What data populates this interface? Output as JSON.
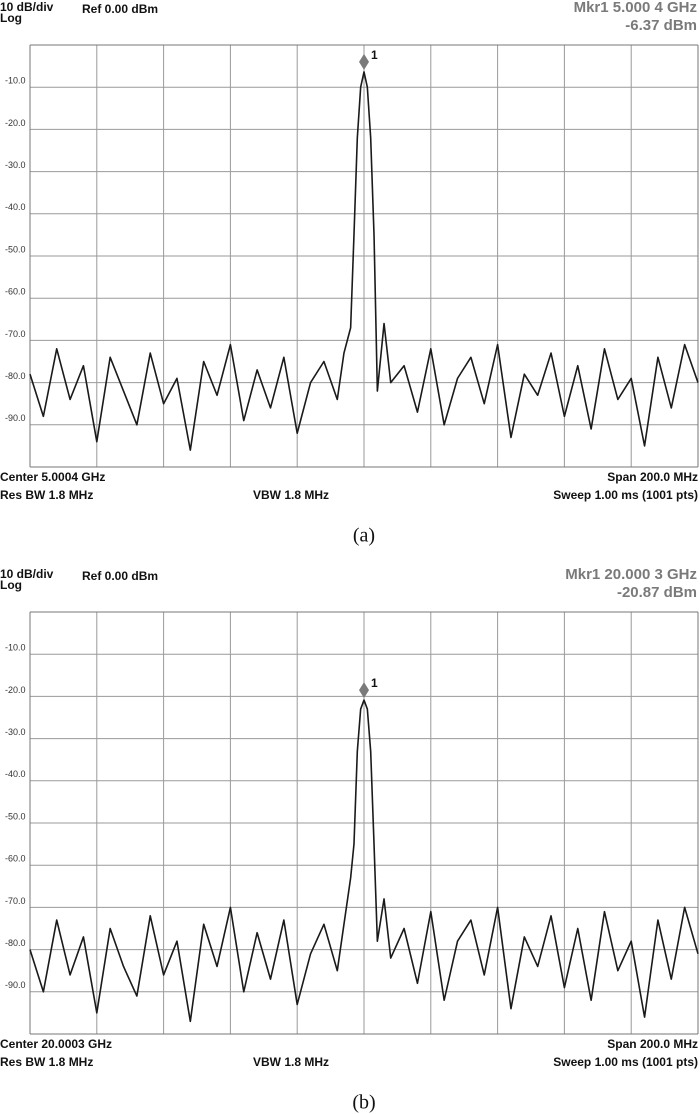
{
  "chart_data": [
    {
      "type": "line",
      "scale_label": "10 dB/div",
      "mode_label": "Log",
      "ref_label": "Ref 0.00 dBm",
      "marker_freq": "Mkr1 5.000 4 GHz",
      "marker_level": "-6.37 dBm",
      "center_label": "Center 5.0004 GHz",
      "span_label": "Span 200.0 MHz",
      "rbw_label": "Res BW 1.8 MHz",
      "vbw_label": "VBW 1.8 MHz",
      "sweep_label": "Sweep  1.00 ms (1001 pts)",
      "caption": "(a)",
      "marker": {
        "label": "1",
        "x": 5.0004,
        "y": -6.37
      },
      "xlim": [
        4.9004,
        5.1004
      ],
      "xticks": [
        4.9204,
        4.9404,
        4.9604,
        4.9804,
        5.0004,
        5.0204,
        5.0404,
        5.0604,
        5.0804
      ],
      "ylim": [
        -100,
        0
      ],
      "yticks": [
        {
          "value": -10,
          "label": "-10.0"
        },
        {
          "value": -20,
          "label": "-20.0"
        },
        {
          "value": -30,
          "label": "-30.0"
        },
        {
          "value": -40,
          "label": "-40.0"
        },
        {
          "value": -50,
          "label": "-50.0"
        },
        {
          "value": -60,
          "label": "-60.0"
        },
        {
          "value": -70,
          "label": "-70.0"
        },
        {
          "value": -80,
          "label": "-80.0"
        },
        {
          "value": -90,
          "label": "-90.0"
        }
      ],
      "grid": true,
      "x": [
        4.9004,
        4.9044,
        4.9084,
        4.9124,
        4.9164,
        4.9204,
        4.9244,
        4.9284,
        4.9324,
        4.9364,
        4.9404,
        4.9444,
        4.9484,
        4.9524,
        4.9564,
        4.9604,
        4.9644,
        4.9684,
        4.9724,
        4.9764,
        4.9804,
        4.9844,
        4.9884,
        4.9924,
        4.9944,
        4.9964,
        4.9974,
        4.9984,
        4.9994,
        5.0004,
        5.0014,
        5.0024,
        5.0034,
        5.0044,
        5.0064,
        5.0084,
        5.0124,
        5.0164,
        5.0204,
        5.0244,
        5.0284,
        5.0324,
        5.0364,
        5.0404,
        5.0444,
        5.0484,
        5.0524,
        5.0564,
        5.0604,
        5.0644,
        5.0684,
        5.0724,
        5.0764,
        5.0804,
        5.0844,
        5.0884,
        5.0924,
        5.0964,
        5.1004
      ],
      "series": [
        {
          "color": "#1a1a1a",
          "values": [
            -78,
            -88,
            -72,
            -84,
            -76,
            -94,
            -74,
            -82,
            -90,
            -73,
            -85,
            -79,
            -96,
            -75,
            -83,
            -71,
            -89,
            -77,
            -86,
            -74,
            -92,
            -80,
            -75,
            -84,
            -73,
            -67,
            -45,
            -22,
            -10,
            -6.37,
            -10,
            -22,
            -45,
            -82,
            -66,
            -80,
            -76,
            -87,
            -72,
            -90,
            -79,
            -74,
            -85,
            -71,
            -93,
            -78,
            -83,
            -73,
            -88,
            -76,
            -91,
            -72,
            -84,
            -79,
            -95,
            -74,
            -86,
            -71,
            -80
          ]
        }
      ]
    },
    {
      "type": "line",
      "scale_label": "10 dB/div",
      "mode_label": "Log",
      "ref_label": "Ref 0.00 dBm",
      "marker_freq": "Mkr1 20.000 3 GHz",
      "marker_level": "-20.87 dBm",
      "center_label": "Center 20.0003 GHz",
      "span_label": "Span 200.0 MHz",
      "rbw_label": "Res BW 1.8 MHz",
      "vbw_label": "VBW 1.8 MHz",
      "sweep_label": "Sweep  1.00 ms (1001 pts)",
      "caption": "(b)",
      "marker": {
        "label": "1",
        "x": 20.0003,
        "y": -20.87
      },
      "xlim": [
        19.9003,
        20.1003
      ],
      "xticks": [
        19.9203,
        19.9403,
        19.9603,
        19.9803,
        20.0003,
        20.0203,
        20.0403,
        20.0603,
        20.0803
      ],
      "ylim": [
        -100,
        0
      ],
      "yticks": [
        {
          "value": -10,
          "label": "-10.0"
        },
        {
          "value": -20,
          "label": "-20.0"
        },
        {
          "value": -30,
          "label": "-30.0"
        },
        {
          "value": -40,
          "label": "-40.0"
        },
        {
          "value": -50,
          "label": "-50.0"
        },
        {
          "value": -60,
          "label": "-60.0"
        },
        {
          "value": -70,
          "label": "-70.0"
        },
        {
          "value": -80,
          "label": "-80.0"
        },
        {
          "value": -90,
          "label": "-90.0"
        }
      ],
      "grid": true,
      "x": [
        19.9003,
        19.9043,
        19.9083,
        19.9123,
        19.9163,
        19.9203,
        19.9243,
        19.9283,
        19.9323,
        19.9363,
        19.9403,
        19.9443,
        19.9483,
        19.9523,
        19.9563,
        19.9603,
        19.9643,
        19.9683,
        19.9723,
        19.9763,
        19.9803,
        19.9843,
        19.9883,
        19.9923,
        19.9943,
        19.9963,
        19.9973,
        19.9983,
        19.9993,
        20.0003,
        20.0013,
        20.0023,
        20.0033,
        20.0043,
        20.0063,
        20.0083,
        20.0123,
        20.0163,
        20.0203,
        20.0243,
        20.0283,
        20.0323,
        20.0363,
        20.0403,
        20.0443,
        20.0483,
        20.0523,
        20.0563,
        20.0603,
        20.0643,
        20.0683,
        20.0723,
        20.0763,
        20.0803,
        20.0843,
        20.0883,
        20.0923,
        20.0963,
        20.1003
      ],
      "series": [
        {
          "color": "#1a1a1a",
          "values": [
            -80,
            -90,
            -73,
            -86,
            -77,
            -95,
            -75,
            -84,
            -91,
            -72,
            -86,
            -78,
            -97,
            -74,
            -84,
            -70,
            -90,
            -76,
            -87,
            -73,
            -93,
            -81,
            -74,
            -85,
            -74,
            -63,
            -55,
            -33,
            -23,
            -20.87,
            -23,
            -33,
            -55,
            -78,
            -68,
            -82,
            -75,
            -88,
            -71,
            -92,
            -78,
            -73,
            -86,
            -70,
            -94,
            -77,
            -84,
            -72,
            -89,
            -75,
            -92,
            -71,
            -85,
            -78,
            -96,
            -73,
            -87,
            -70,
            -81
          ]
        }
      ]
    }
  ]
}
